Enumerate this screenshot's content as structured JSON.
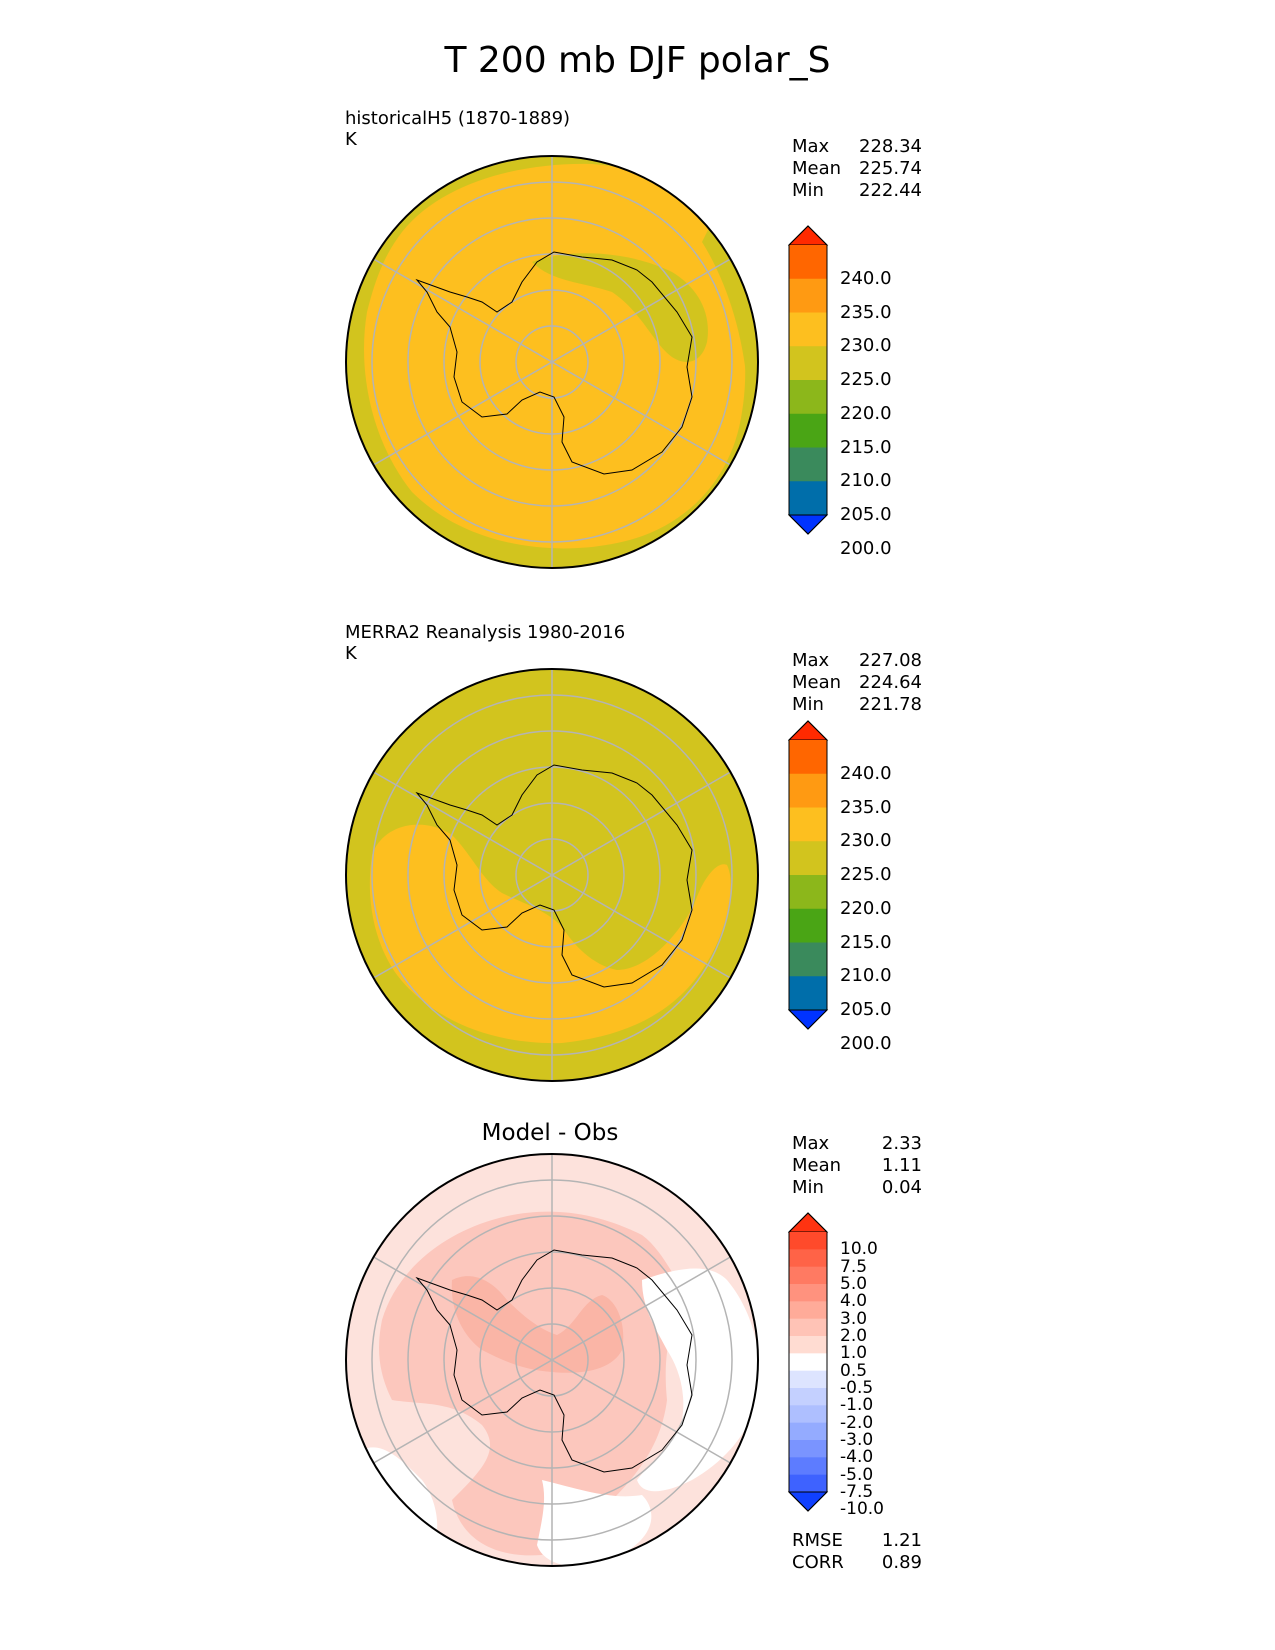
{
  "title": "T 200 mb DJF polar_S",
  "panels": [
    {
      "name": "test",
      "label": "historicalH5 (1870-1889)",
      "units": "K",
      "stats": {
        "max_label": "Max",
        "max": "228.34",
        "mean_label": "Mean",
        "mean": "225.74",
        "min_label": "Min",
        "min": "222.44"
      }
    },
    {
      "name": "reference",
      "label": "MERRA2 Reanalysis 1980-2016",
      "units": "K",
      "stats": {
        "max_label": "Max",
        "max": "227.08",
        "mean_label": "Mean",
        "mean": "224.64",
        "min_label": "Min",
        "min": "221.78"
      }
    },
    {
      "name": "difference",
      "label": "Model - Obs",
      "stats": {
        "max_label": "Max",
        "max": "2.33",
        "mean_label": "Mean",
        "mean": "1.11",
        "min_label": "Min",
        "min": "0.04"
      },
      "metrics": {
        "rmse_label": "RMSE",
        "rmse": "1.21",
        "corr_label": "CORR",
        "corr": "0.89"
      }
    }
  ],
  "colorbars": {
    "absolute": {
      "labels": [
        "240.0",
        "235.0",
        "230.0",
        "225.0",
        "220.0",
        "215.0",
        "210.0",
        "205.0",
        "200.0"
      ],
      "colors": [
        "#ff2a00",
        "#ff6600",
        "#ff9a12",
        "#fdbf1f",
        "#d2c41e",
        "#8cb71b",
        "#4aa515",
        "#3a8a5c",
        "#006eaa",
        "#0033ff"
      ]
    },
    "difference": {
      "labels": [
        "10.0",
        "7.5",
        "5.0",
        "4.0",
        "3.0",
        "2.0",
        "1.0",
        "0.5",
        "-0.5",
        "-1.0",
        "-2.0",
        "-3.0",
        "-4.0",
        "-5.0",
        "-7.5",
        "-10.0"
      ],
      "colors": [
        "#ff3311",
        "#ff4a2b",
        "#ff6347",
        "#ff7a62",
        "#ff927e",
        "#ffab99",
        "#ffc3b6",
        "#ffdcd2",
        "#ffffff",
        "#dde4ff",
        "#c4d0ff",
        "#aebfff",
        "#94abff",
        "#7a94ff",
        "#5d7cff",
        "#3e62ff",
        "#1040ff"
      ]
    }
  },
  "palette": {
    "orange": "#fdbf1f",
    "olive": "#d2c41e",
    "diff_base": "#fde2dc",
    "diff_mid": "#fcc7bd",
    "diff_strong": "#fab5a6",
    "white": "#ffffff",
    "grid": "#b4b4b4",
    "coast": "#000000"
  }
}
